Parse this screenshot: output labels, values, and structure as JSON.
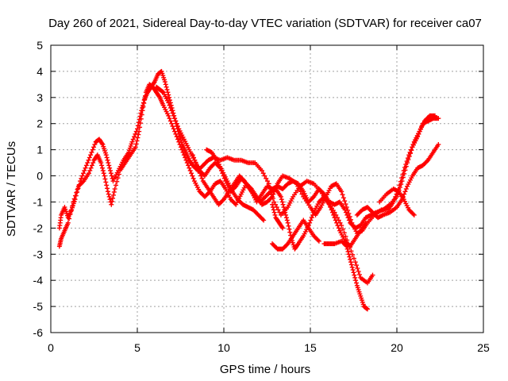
{
  "chart_data": {
    "type": "scatter",
    "title": "Day 260 of 2021, Sidereal Day-to-day VTEC variation (SDTVAR) for receiver ca07",
    "xlabel": "GPS time / hours",
    "ylabel": "SDTVAR / TECUs",
    "xlim": [
      0,
      25
    ],
    "ylim": [
      -6,
      5
    ],
    "xticks": [
      "0",
      "5",
      "10",
      "15",
      "20",
      "25"
    ],
    "yticks": [
      "-6",
      "-5",
      "-4",
      "-3",
      "-2",
      "-1",
      "0",
      "1",
      "2",
      "3",
      "4",
      "5"
    ],
    "grid": true,
    "marker": "plus",
    "color": "#ff0000",
    "series": [
      {
        "points": [
          [
            0.5,
            -2.0
          ],
          [
            0.6,
            -1.5
          ],
          [
            0.8,
            -1.2
          ],
          [
            1.0,
            -1.6
          ],
          [
            1.2,
            -1.3
          ],
          [
            1.4,
            -0.9
          ],
          [
            1.7,
            -0.2
          ],
          [
            2.0,
            0.3
          ],
          [
            2.3,
            0.8
          ],
          [
            2.6,
            1.3
          ],
          [
            2.8,
            1.4
          ],
          [
            3.0,
            1.2
          ],
          [
            3.2,
            0.8
          ],
          [
            3.4,
            0.3
          ],
          [
            3.6,
            -0.2
          ],
          [
            3.9,
            0.2
          ],
          [
            4.2,
            0.6
          ],
          [
            4.5,
            0.9
          ],
          [
            4.7,
            1.3
          ],
          [
            5.0,
            1.8
          ],
          [
            5.2,
            2.4
          ],
          [
            5.4,
            2.9
          ],
          [
            5.6,
            3.2
          ],
          [
            5.8,
            3.4
          ],
          [
            6.0,
            3.6
          ],
          [
            6.2,
            3.9
          ],
          [
            6.4,
            4.0
          ],
          [
            6.6,
            3.6
          ],
          [
            6.8,
            3.1
          ],
          [
            7.0,
            2.6
          ],
          [
            7.2,
            2.1
          ],
          [
            7.4,
            1.6
          ],
          [
            7.6,
            1.2
          ],
          [
            7.8,
            0.9
          ],
          [
            8.0,
            0.6
          ],
          [
            8.2,
            0.4
          ],
          [
            8.5,
            0.2
          ],
          [
            8.8,
            0.4
          ],
          [
            9.1,
            0.6
          ],
          [
            9.4,
            0.7
          ],
          [
            9.8,
            0.6
          ],
          [
            10.2,
            0.7
          ],
          [
            10.6,
            0.6
          ],
          [
            11.0,
            0.6
          ],
          [
            11.4,
            0.5
          ],
          [
            11.8,
            0.5
          ],
          [
            12.2,
            0.2
          ],
          [
            12.6,
            -0.3
          ],
          [
            12.9,
            -1.0
          ],
          [
            13.3,
            -1.5
          ],
          [
            13.7,
            -1.2
          ],
          [
            14.0,
            -0.8
          ],
          [
            14.4,
            -0.4
          ],
          [
            14.8,
            -0.2
          ],
          [
            15.2,
            -0.3
          ],
          [
            15.6,
            -0.6
          ],
          [
            16.0,
            -1.0
          ],
          [
            16.4,
            -1.4
          ],
          [
            16.8,
            -1.9
          ],
          [
            17.2,
            -2.6
          ],
          [
            17.6,
            -3.3
          ],
          [
            17.9,
            -3.9
          ],
          [
            18.3,
            -4.1
          ],
          [
            18.6,
            -3.8
          ]
        ]
      },
      {
        "points": [
          [
            0.5,
            -2.7
          ],
          [
            0.6,
            -2.4
          ],
          [
            0.8,
            -2.1
          ],
          [
            1.0,
            -1.8
          ],
          [
            1.3,
            -1.0
          ],
          [
            1.6,
            -0.4
          ],
          [
            1.9,
            -0.2
          ],
          [
            2.2,
            0.1
          ],
          [
            2.5,
            0.6
          ],
          [
            2.7,
            0.8
          ],
          [
            2.9,
            0.5
          ],
          [
            3.1,
            0.0
          ],
          [
            3.3,
            -0.6
          ],
          [
            3.5,
            -1.1
          ],
          [
            3.7,
            -0.5
          ],
          [
            4.0,
            0.2
          ],
          [
            4.3,
            0.5
          ],
          [
            4.6,
            0.8
          ],
          [
            4.9,
            1.1
          ],
          [
            5.1,
            1.7
          ],
          [
            5.3,
            2.5
          ],
          [
            5.5,
            3.2
          ],
          [
            5.7,
            3.5
          ],
          [
            5.9,
            3.4
          ],
          [
            6.1,
            3.2
          ],
          [
            6.3,
            3.0
          ],
          [
            6.5,
            2.7
          ],
          [
            6.8,
            2.3
          ],
          [
            7.1,
            1.8
          ],
          [
            7.4,
            1.3
          ],
          [
            7.7,
            0.8
          ],
          [
            8.0,
            0.3
          ],
          [
            8.3,
            -0.2
          ],
          [
            8.6,
            -0.6
          ],
          [
            8.9,
            -0.8
          ],
          [
            9.2,
            -0.6
          ],
          [
            9.5,
            -0.3
          ],
          [
            9.8,
            -0.2
          ],
          [
            10.1,
            -0.5
          ],
          [
            10.4,
            -0.9
          ],
          [
            10.7,
            -1.1
          ],
          [
            11.0,
            -0.7
          ],
          [
            11.3,
            -0.3
          ],
          [
            11.6,
            -0.6
          ],
          [
            11.9,
            -1.0
          ],
          [
            12.2,
            -0.7
          ],
          [
            12.5,
            -0.4
          ],
          [
            12.8,
            -0.5
          ],
          [
            13.1,
            -0.4
          ],
          [
            13.4,
            -0.5
          ],
          [
            13.7,
            -0.3
          ],
          [
            14.0,
            -0.2
          ],
          [
            14.3,
            -0.3
          ],
          [
            14.6,
            -0.6
          ],
          [
            14.9,
            -1.0
          ],
          [
            15.2,
            -0.8
          ],
          [
            15.5,
            -0.5
          ],
          [
            15.8,
            -0.7
          ],
          [
            16.1,
            -1.0
          ],
          [
            16.4,
            -1.1
          ],
          [
            16.7,
            -1.0
          ],
          [
            17.0,
            -1.3
          ],
          [
            17.3,
            -1.8
          ],
          [
            17.6,
            -2.0
          ],
          [
            17.9,
            -1.9
          ],
          [
            18.2,
            -1.6
          ],
          [
            18.5,
            -1.5
          ],
          [
            18.8,
            -1.4
          ],
          [
            19.2,
            -1.3
          ],
          [
            19.6,
            -1.1
          ],
          [
            20.0,
            -0.8
          ],
          [
            20.3,
            -0.2
          ],
          [
            20.6,
            0.5
          ],
          [
            20.9,
            1.1
          ],
          [
            21.2,
            1.5
          ],
          [
            21.5,
            2.0
          ],
          [
            21.8,
            2.1
          ],
          [
            22.1,
            2.2
          ],
          [
            22.4,
            2.2
          ]
        ]
      },
      {
        "points": [
          [
            6.1,
            3.4
          ],
          [
            6.3,
            3.3
          ],
          [
            6.5,
            3.2
          ],
          [
            6.8,
            2.8
          ],
          [
            7.1,
            2.3
          ],
          [
            7.4,
            1.8
          ],
          [
            7.7,
            1.4
          ],
          [
            8.0,
            1.0
          ],
          [
            8.3,
            0.6
          ],
          [
            8.6,
            0.2
          ],
          [
            8.9,
            0.0
          ],
          [
            9.2,
            0.3
          ],
          [
            9.5,
            0.5
          ],
          [
            9.8,
            0.3
          ],
          [
            10.1,
            -0.2
          ],
          [
            10.4,
            -0.6
          ],
          [
            10.7,
            -0.4
          ],
          [
            11.0,
            -0.1
          ],
          [
            11.3,
            -0.3
          ],
          [
            11.6,
            -0.5
          ],
          [
            11.9,
            -0.8
          ],
          [
            12.2,
            -1.1
          ],
          [
            12.5,
            -1.0
          ],
          [
            12.8,
            -0.8
          ],
          [
            13.1,
            -0.3
          ],
          [
            13.4,
            0.0
          ],
          [
            13.8,
            -0.1
          ],
          [
            14.2,
            -0.3
          ],
          [
            14.6,
            -0.8
          ],
          [
            15.0,
            -1.2
          ],
          [
            15.3,
            -1.5
          ],
          [
            15.6,
            -1.2
          ],
          [
            15.9,
            -0.8
          ],
          [
            16.2,
            -0.4
          ],
          [
            16.5,
            -0.3
          ],
          [
            16.8,
            -0.6
          ],
          [
            17.1,
            -1.2
          ],
          [
            17.4,
            -1.8
          ],
          [
            17.7,
            -2.2
          ],
          [
            18.0,
            -2.1
          ],
          [
            18.3,
            -1.8
          ],
          [
            18.7,
            -1.5
          ],
          [
            19.1,
            -1.3
          ],
          [
            19.5,
            -1.3
          ],
          [
            19.8,
            -1.0
          ],
          [
            20.1,
            -0.5
          ],
          [
            20.4,
            0.2
          ],
          [
            20.7,
            0.8
          ],
          [
            21.0,
            1.3
          ],
          [
            21.3,
            1.7
          ],
          [
            21.6,
            2.1
          ],
          [
            21.9,
            2.3
          ],
          [
            22.2,
            2.3
          ]
        ]
      },
      {
        "points": [
          [
            8.2,
            0.8
          ],
          [
            8.5,
            0.3
          ],
          [
            8.8,
            -0.2
          ],
          [
            9.1,
            -0.5
          ],
          [
            9.4,
            -0.8
          ],
          [
            9.7,
            -1.1
          ],
          [
            10.0,
            -0.9
          ],
          [
            10.3,
            -0.6
          ],
          [
            10.6,
            -0.3
          ],
          [
            10.9,
            0.0
          ],
          [
            11.2,
            -0.2
          ],
          [
            11.5,
            -0.5
          ],
          [
            11.8,
            -0.8
          ],
          [
            12.1,
            -1.0
          ],
          [
            12.4,
            -0.8
          ],
          [
            12.7,
            -0.6
          ],
          [
            13.0,
            -0.5
          ],
          [
            13.3,
            -0.8
          ],
          [
            13.5,
            -1.3
          ],
          [
            13.7,
            -1.8
          ],
          [
            13.9,
            -2.4
          ],
          [
            14.1,
            -2.8
          ],
          [
            14.3,
            -2.6
          ],
          [
            14.6,
            -2.3
          ],
          [
            14.9,
            -1.9
          ],
          [
            15.2,
            -1.4
          ],
          [
            15.5,
            -1.0
          ],
          [
            15.8,
            -0.8
          ],
          [
            16.1,
            -1.1
          ],
          [
            16.4,
            -1.6
          ],
          [
            16.7,
            -2.1
          ],
          [
            17.0,
            -2.5
          ],
          [
            17.3,
            -2.7
          ],
          [
            17.6,
            -2.4
          ],
          [
            17.9,
            -2.1
          ],
          [
            18.2,
            -1.8
          ]
        ]
      },
      {
        "points": [
          [
            9.0,
            1.0
          ],
          [
            9.3,
            0.9
          ],
          [
            9.6,
            0.6
          ],
          [
            9.9,
            0.2
          ],
          [
            10.2,
            -0.2
          ],
          [
            10.5,
            -0.6
          ],
          [
            10.8,
            -0.9
          ],
          [
            11.1,
            -1.1
          ],
          [
            11.4,
            -1.2
          ],
          [
            11.7,
            -1.3
          ],
          [
            12.0,
            -1.5
          ],
          [
            12.3,
            -1.7
          ]
        ]
      },
      {
        "points": [
          [
            12.8,
            -1.1
          ],
          [
            13.0,
            -1.6
          ],
          [
            13.2,
            -1.8
          ],
          [
            13.4,
            -2.0
          ]
        ]
      },
      {
        "points": [
          [
            12.8,
            -2.6
          ],
          [
            13.1,
            -2.8
          ],
          [
            13.4,
            -2.8
          ],
          [
            13.7,
            -2.6
          ],
          [
            14.0,
            -2.3
          ],
          [
            14.3,
            -2.0
          ],
          [
            14.6,
            -1.7
          ],
          [
            14.9,
            -2.0
          ],
          [
            15.2,
            -2.3
          ],
          [
            15.5,
            -2.5
          ]
        ]
      },
      {
        "points": [
          [
            15.8,
            -2.6
          ],
          [
            16.1,
            -2.6
          ],
          [
            16.4,
            -2.6
          ],
          [
            16.8,
            -2.5
          ],
          [
            17.1,
            -2.7
          ],
          [
            17.3,
            -3.2
          ],
          [
            17.5,
            -3.7
          ],
          [
            17.7,
            -4.2
          ],
          [
            17.9,
            -4.6
          ],
          [
            18.1,
            -5.0
          ],
          [
            18.3,
            -5.1
          ]
        ]
      },
      {
        "points": [
          [
            17.7,
            -1.5
          ],
          [
            18.0,
            -1.3
          ],
          [
            18.3,
            -1.2
          ],
          [
            18.6,
            -1.4
          ],
          [
            18.9,
            -1.6
          ],
          [
            19.2,
            -1.5
          ],
          [
            19.6,
            -1.4
          ],
          [
            20.0,
            -1.2
          ],
          [
            20.3,
            -0.9
          ],
          [
            20.6,
            -0.4
          ],
          [
            20.9,
            0.0
          ],
          [
            21.2,
            0.3
          ],
          [
            21.5,
            0.4
          ],
          [
            21.8,
            0.6
          ],
          [
            22.1,
            0.9
          ],
          [
            22.4,
            1.2
          ]
        ]
      },
      {
        "points": [
          [
            19.0,
            -1.0
          ],
          [
            19.4,
            -0.7
          ],
          [
            19.8,
            -0.5
          ],
          [
            20.1,
            -0.6
          ],
          [
            20.4,
            -0.9
          ],
          [
            20.7,
            -1.3
          ],
          [
            21.0,
            -1.5
          ]
        ]
      }
    ]
  }
}
